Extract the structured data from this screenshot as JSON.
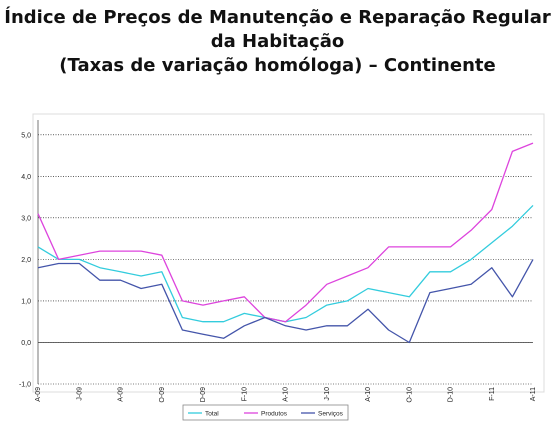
{
  "title_lines": [
    "Índice de Preços de Manutenção e Reparação Regular",
    "da Habitação",
    "(Taxas de variação homóloga) – Continente"
  ],
  "chart_data": {
    "type": "line",
    "title": "Índice de Preços de Manutenção e Reparação Regular da Habitação (Taxas de variação homóloga) – Continente",
    "ylim": [
      -1.0,
      5.5
    ],
    "y_ticks": [
      "-1,0",
      "0,0",
      "1,0",
      "2,0",
      "3,0",
      "4,0",
      "5,0"
    ],
    "y_tick_values": [
      -1,
      0,
      1,
      2,
      3,
      4,
      5
    ],
    "grid": true,
    "legend_position": "bottom",
    "x_tick_labels": [
      {
        "label": "A-09",
        "index": 0
      },
      {
        "label": "J-09",
        "index": 3
      },
      {
        "label": "A-09",
        "index": 6
      },
      {
        "label": "O-09",
        "index": 9
      },
      {
        "label": "D-09",
        "index": 12
      },
      {
        "label": "F-10",
        "index": 15
      },
      {
        "label": "A-10",
        "index": 18
      },
      {
        "label": "J-10",
        "index": 21
      },
      {
        "label": "A-10",
        "index": 24
      },
      {
        "label": "O-10",
        "index": 27
      },
      {
        "label": "D-10",
        "index": 30
      },
      {
        "label": "F-11",
        "index": 33
      },
      {
        "label": "A-11",
        "index": 36
      }
    ],
    "series": [
      {
        "name": "Total",
        "color": "#33ccdd",
        "values": [
          2.3,
          2.0,
          2.0,
          1.8,
          1.7,
          1.6,
          1.7,
          0.6,
          0.5,
          0.5,
          0.7,
          0.6,
          0.5,
          0.6,
          0.9,
          1.0,
          1.3,
          1.2,
          1.1,
          1.7,
          1.7,
          2.0,
          2.4,
          2.8,
          3.3
        ]
      },
      {
        "name": "Produtos",
        "color": "#dd44dd",
        "values": [
          3.1,
          2.0,
          2.1,
          2.2,
          2.2,
          2.2,
          2.1,
          1.0,
          0.9,
          1.0,
          1.1,
          0.6,
          0.5,
          0.9,
          1.4,
          1.6,
          1.8,
          2.3,
          2.3,
          2.3,
          2.3,
          2.7,
          3.2,
          4.6,
          4.8
        ]
      },
      {
        "name": "Serviços",
        "color": "#4455aa",
        "values": [
          1.8,
          1.9,
          1.9,
          1.5,
          1.5,
          1.3,
          1.4,
          0.3,
          0.2,
          0.1,
          0.4,
          0.6,
          0.4,
          0.3,
          0.4,
          0.4,
          0.8,
          0.3,
          0.0,
          1.2,
          1.3,
          1.4,
          1.8,
          1.1,
          2.0
        ]
      }
    ],
    "x_index_max": 36
  }
}
